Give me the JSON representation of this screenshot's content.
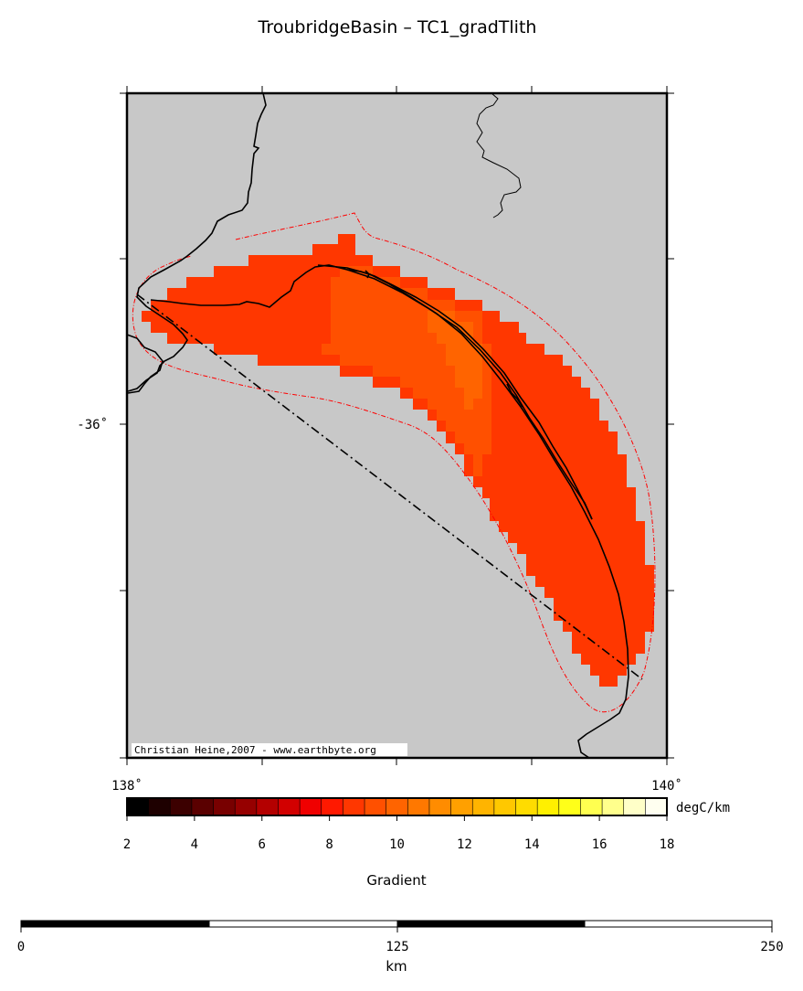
{
  "title": "TroubridgeBasin – TC1_gradTlith",
  "credit": "Christian Heine,2007 - www.earthbyte.org",
  "map": {
    "lon_labels": [
      "138˚",
      "140˚"
    ],
    "lat_labels": [
      "-36˚"
    ],
    "background_color": "#c8c8c8",
    "fill_colors": {
      "outer": "#ff3700",
      "inner": "#ff5000",
      "core": "#ff6400"
    },
    "coastline_color": "#000000",
    "boundary_color": "#ff0000"
  },
  "colorbar": {
    "label": "Gradient",
    "unit": "degC/km",
    "ticks": [
      "2",
      "4",
      "6",
      "8",
      "10",
      "12",
      "14",
      "16",
      "18"
    ],
    "colors": [
      "#000000",
      "#1e0000",
      "#3c0000",
      "#5a0000",
      "#780000",
      "#960000",
      "#b40000",
      "#d20000",
      "#f00000",
      "#ff1900",
      "#ff3700",
      "#ff5000",
      "#ff6400",
      "#ff7800",
      "#ff8c00",
      "#ffa000",
      "#ffb400",
      "#ffc800",
      "#ffdc00",
      "#fff000",
      "#ffff19",
      "#ffff50",
      "#ffff8c",
      "#ffffc8",
      "#fffff0"
    ]
  },
  "scalebar": {
    "ticks": [
      "0",
      "125",
      "250"
    ],
    "unit": "km"
  }
}
